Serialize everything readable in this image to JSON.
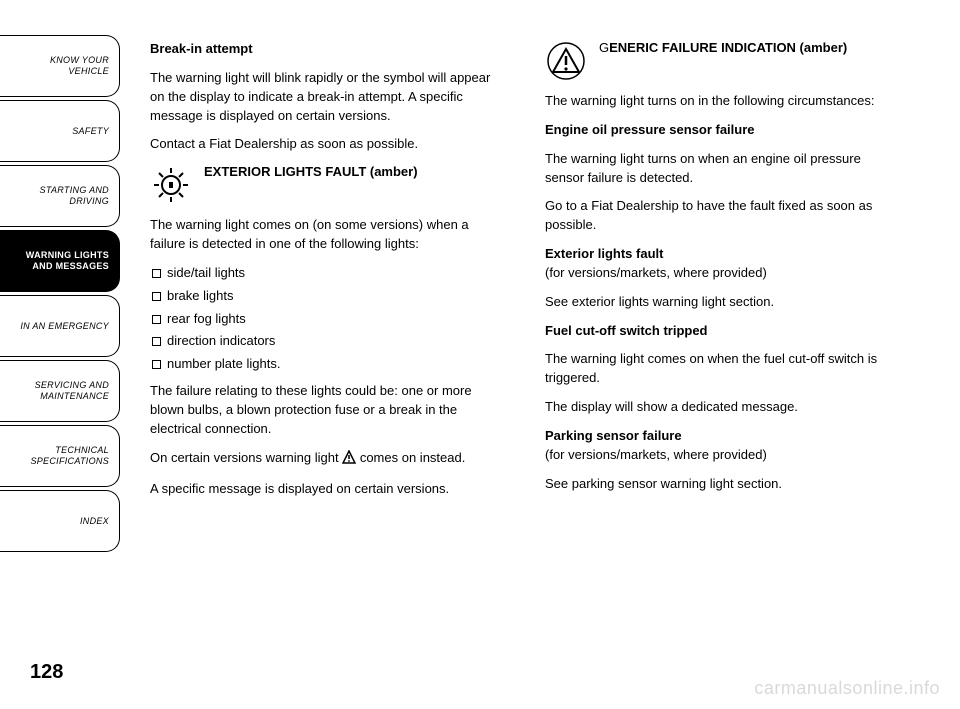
{
  "sidebar": {
    "tabs": [
      {
        "label": "KNOW YOUR\nVEHICLE",
        "active": false
      },
      {
        "label": "SAFETY",
        "active": false
      },
      {
        "label": "STARTING AND\nDRIVING",
        "active": false
      },
      {
        "label": "WARNING LIGHTS\nAND MESSAGES",
        "active": true
      },
      {
        "label": "IN AN EMERGENCY",
        "active": false
      },
      {
        "label": "SERVICING AND\nMAINTENANCE",
        "active": false
      },
      {
        "label": "TECHNICAL\nSPECIFICATIONS",
        "active": false
      },
      {
        "label": "INDEX",
        "active": false
      }
    ]
  },
  "left": {
    "title1": "Break-in attempt",
    "p1": "The warning light will blink rapidly or the symbol will appear on the display to indicate a break-in attempt. A specific message is displayed on certain versions.",
    "p2": "Contact a Fiat Dealership as soon as possible.",
    "icon1_title": "EXTERIOR LIGHTS FAULT (amber)",
    "p3": "The warning light comes on (on some versions) when a failure is detected in one of the following lights:",
    "bullets": [
      "side/tail lights",
      "brake lights",
      "rear fog lights",
      "direction indicators",
      "number plate lights."
    ],
    "p4": "The failure relating to these lights could be: one or more blown bulbs, a blown protection fuse or a break in the electrical connection.",
    "p5a": "On certain versions warning light ",
    "p5b": " comes on instead.",
    "p6": "A specific message is displayed on certain versions."
  },
  "right": {
    "icon1_title_a": "G",
    "icon1_title_b": "ENERIC FAILURE INDICATION (amber)",
    "p1": "The warning light turns on in the following circumstances:",
    "h1": "Engine oil pressure sensor failure",
    "p2": "The warning light turns on when an engine oil pressure sensor failure is detected.",
    "p3": "Go to a Fiat Dealership to have the fault fixed as soon as possible.",
    "h2": "Exterior lights fault",
    "h2sub": "(for versions/markets, where provided)",
    "p4": "See exterior lights warning light section.",
    "h3": "Fuel cut-off switch tripped",
    "p5": "The warning light comes on when the fuel cut-off switch is triggered.",
    "p6": "The display will show a dedicated message.",
    "h4": "Parking sensor failure",
    "h4sub": "(for versions/markets, where provided)",
    "p7": "See parking sensor warning light section."
  },
  "page_number": "128",
  "watermark": "carmanualsonline.info",
  "colors": {
    "text": "#000000",
    "bg": "#ffffff",
    "watermark": "#d9d9d9"
  }
}
